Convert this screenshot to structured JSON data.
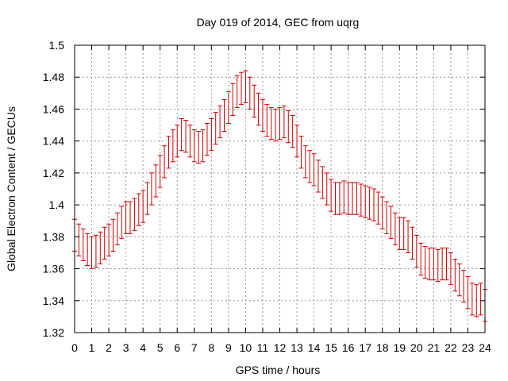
{
  "chart_data": {
    "type": "scatter",
    "title": "Day 019 of 2014, GEC from uqrg",
    "xlabel": "GPS time / hours",
    "ylabel": "Global Electron Content / GECUs",
    "xlim": [
      0,
      24
    ],
    "ylim": [
      1.32,
      1.5
    ],
    "xticks": [
      0,
      1,
      2,
      3,
      4,
      5,
      6,
      7,
      8,
      9,
      10,
      11,
      12,
      13,
      14,
      15,
      16,
      17,
      18,
      19,
      20,
      21,
      22,
      23,
      24
    ],
    "yticks": [
      1.32,
      1.34,
      1.36,
      1.38,
      1.4,
      1.42,
      1.44,
      1.46,
      1.48,
      1.5
    ],
    "ytick_labels": [
      "1.32",
      "1.34",
      "1.36",
      "1.38",
      "1.4",
      "1.42",
      "1.44",
      "1.46",
      "1.48",
      "1.5"
    ],
    "grid": true,
    "error_bar": 0.01,
    "series_color": "#cc0000",
    "x": [
      0,
      0.25,
      0.5,
      0.75,
      1,
      1.25,
      1.5,
      1.75,
      2,
      2.25,
      2.5,
      2.75,
      3,
      3.25,
      3.5,
      3.75,
      4,
      4.25,
      4.5,
      4.75,
      5,
      5.25,
      5.5,
      5.75,
      6,
      6.25,
      6.5,
      6.75,
      7,
      7.25,
      7.5,
      7.75,
      8,
      8.25,
      8.5,
      8.75,
      9,
      9.25,
      9.5,
      9.75,
      10,
      10.25,
      10.5,
      10.75,
      11,
      11.25,
      11.5,
      11.75,
      12,
      12.25,
      12.5,
      12.75,
      13,
      13.25,
      13.5,
      13.75,
      14,
      14.25,
      14.5,
      14.75,
      15,
      15.25,
      15.5,
      15.75,
      16,
      16.25,
      16.5,
      16.75,
      17,
      17.25,
      17.5,
      17.75,
      18,
      18.25,
      18.5,
      18.75,
      19,
      19.25,
      19.5,
      19.75,
      20,
      20.25,
      20.5,
      20.75,
      21,
      21.25,
      21.5,
      21.75,
      22,
      22.25,
      22.5,
      22.75,
      23,
      23.25,
      23.5,
      23.75,
      24
    ],
    "y": [
      1.381,
      1.378,
      1.375,
      1.372,
      1.37,
      1.371,
      1.373,
      1.376,
      1.378,
      1.381,
      1.385,
      1.389,
      1.392,
      1.392,
      1.394,
      1.397,
      1.399,
      1.404,
      1.41,
      1.415,
      1.421,
      1.427,
      1.433,
      1.437,
      1.44,
      1.444,
      1.443,
      1.44,
      1.437,
      1.436,
      1.437,
      1.441,
      1.444,
      1.448,
      1.452,
      1.456,
      1.461,
      1.466,
      1.471,
      1.473,
      1.474,
      1.47,
      1.465,
      1.46,
      1.456,
      1.453,
      1.451,
      1.45,
      1.451,
      1.452,
      1.449,
      1.446,
      1.44,
      1.433,
      1.427,
      1.424,
      1.422,
      1.418,
      1.414,
      1.41,
      1.406,
      1.404,
      1.404,
      1.405,
      1.404,
      1.404,
      1.404,
      1.403,
      1.402,
      1.401,
      1.4,
      1.398,
      1.395,
      1.392,
      1.389,
      1.385,
      1.382,
      1.382,
      1.38,
      1.376,
      1.371,
      1.366,
      1.364,
      1.363,
      1.363,
      1.362,
      1.363,
      1.363,
      1.36,
      1.356,
      1.353,
      1.349,
      1.345,
      1.341,
      1.34,
      1.341,
      1.337
    ]
  }
}
